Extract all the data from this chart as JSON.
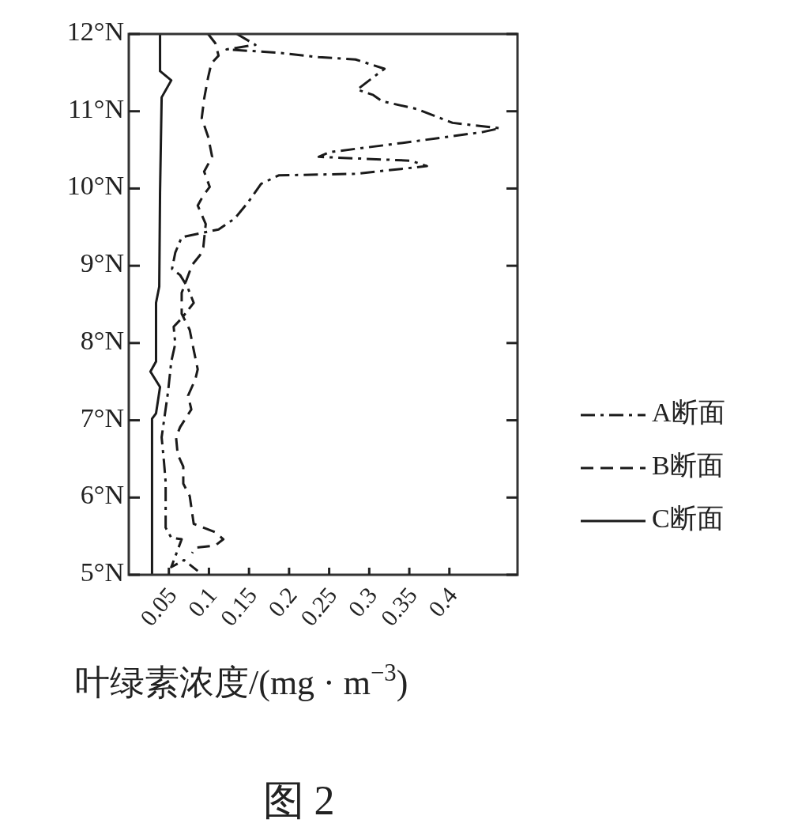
{
  "chart_data": {
    "type": "line",
    "xlabel": "叶绿素浓度/(mg · m$^{−3}$)",
    "annotations": [
      "图 2"
    ],
    "xlim": [
      0,
      0.485
    ],
    "xticks": [
      0.05,
      0.1,
      0.15,
      0.2,
      0.25,
      0.3,
      0.35,
      0.4
    ],
    "ylim": [
      5,
      12
    ],
    "yticks": [
      {
        "value": 5,
        "label": "5°N"
      },
      {
        "value": 6,
        "label": "6°N"
      },
      {
        "value": 7,
        "label": "7°N"
      },
      {
        "value": 8,
        "label": "8°N"
      },
      {
        "value": 9,
        "label": "9°N"
      },
      {
        "value": 10,
        "label": "10°N"
      },
      {
        "value": 11,
        "label": "11°N"
      },
      {
        "value": 12,
        "label": "12°N"
      }
    ],
    "grid": false,
    "legend": "right",
    "marker": "none",
    "series": [
      {
        "name": "A断面",
        "color": "#1a1a1a",
        "line_style": "dashdot",
        "x": [
          0.135,
          0.158,
          0.122,
          0.184,
          0.237,
          0.283,
          0.319,
          0.3,
          0.285,
          0.305,
          0.316,
          0.359,
          0.404,
          0.463,
          0.441,
          0.349,
          0.25,
          0.237,
          0.352,
          0.372,
          0.283,
          0.187,
          0.165,
          0.148,
          0.132,
          0.112,
          0.066,
          0.058,
          0.054,
          0.064,
          0.073,
          0.081,
          0.066,
          0.056,
          0.058,
          0.053,
          0.049,
          0.041,
          0.044,
          0.046,
          0.046,
          0.053,
          0.066,
          0.053,
          0.069,
          0.086
        ],
        "values": [
          12.0,
          11.86,
          11.8,
          11.76,
          11.7,
          11.67,
          11.55,
          11.4,
          11.28,
          11.21,
          11.13,
          11.03,
          10.85,
          10.78,
          10.73,
          10.6,
          10.47,
          10.41,
          10.36,
          10.29,
          10.19,
          10.17,
          10.06,
          9.81,
          9.61,
          9.47,
          9.37,
          9.17,
          8.96,
          8.88,
          8.73,
          8.52,
          8.32,
          8.21,
          7.99,
          7.76,
          7.37,
          6.78,
          6.45,
          6.2,
          5.61,
          5.48,
          5.46,
          5.1,
          5.19,
          5.05
        ]
      },
      {
        "name": "B断面",
        "color": "#1a1a1a",
        "line_style": "dashed",
        "x": [
          0.099,
          0.108,
          0.112,
          0.103,
          0.099,
          0.094,
          0.091,
          0.099,
          0.104,
          0.094,
          0.101,
          0.093,
          0.086,
          0.096,
          0.093,
          0.089,
          0.079,
          0.066,
          0.066,
          0.076,
          0.081,
          0.086,
          0.083,
          0.074,
          0.078,
          0.064,
          0.059,
          0.061,
          0.068,
          0.068,
          0.076,
          0.081,
          0.108,
          0.118,
          0.108,
          0.083,
          0.079
        ],
        "values": [
          12.0,
          11.88,
          11.72,
          11.62,
          11.44,
          11.16,
          10.91,
          10.67,
          10.41,
          10.22,
          10.02,
          9.91,
          9.78,
          9.54,
          9.24,
          9.14,
          9.01,
          8.65,
          8.38,
          8.17,
          7.91,
          7.66,
          7.53,
          7.32,
          7.14,
          6.91,
          6.78,
          6.56,
          6.4,
          6.18,
          6.02,
          5.66,
          5.55,
          5.46,
          5.38,
          5.35,
          5.28
        ]
      },
      {
        "name": "C断面",
        "color": "#1a1a1a",
        "line_style": "solid",
        "x": [
          0.039,
          0.039,
          0.053,
          0.041,
          0.039,
          0.038,
          0.034,
          0.034,
          0.027,
          0.039,
          0.034,
          0.029,
          0.029
        ],
        "values": [
          12.0,
          11.52,
          11.4,
          11.18,
          9.95,
          8.73,
          8.52,
          7.76,
          7.63,
          7.43,
          7.09,
          7.02,
          5.0
        ]
      }
    ]
  }
}
